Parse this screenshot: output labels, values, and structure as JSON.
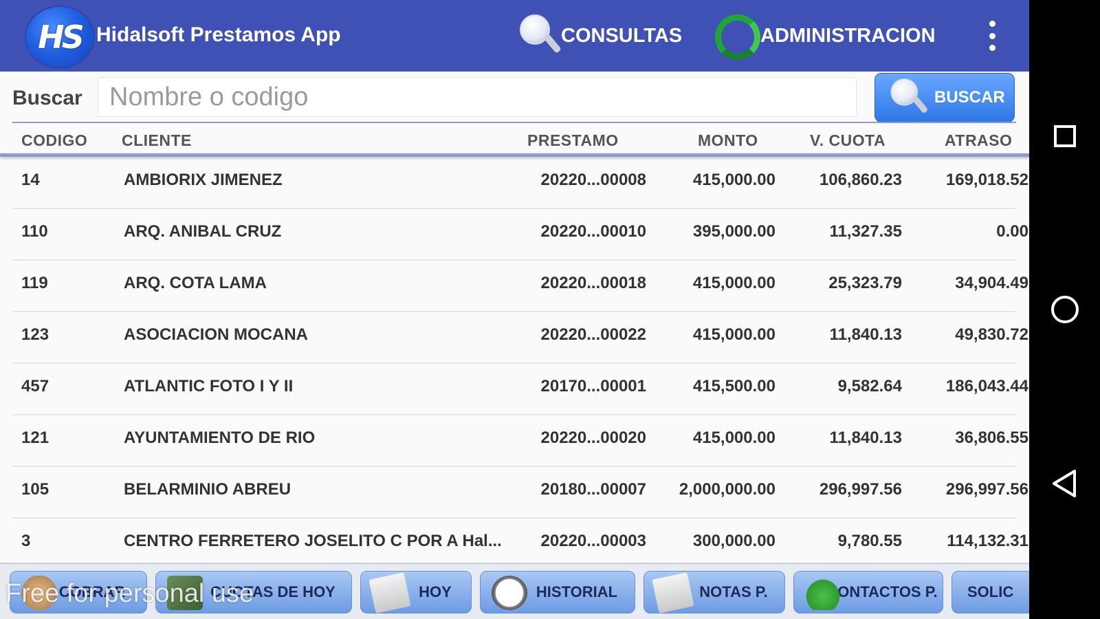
{
  "app": {
    "logo_text": "HS",
    "title": "Hidalsoft Prestamos App"
  },
  "topbar": {
    "consultas_label": "CONSULTAS",
    "administracion_label": "ADMINISTRACION"
  },
  "search": {
    "label": "Buscar",
    "placeholder": "Nombre o codigo",
    "button_label": "BUSCAR"
  },
  "table": {
    "headers": {
      "code": "CODIGO",
      "client": "CLIENTE",
      "loan": "PRESTAMO",
      "amount": "MONTO",
      "quota": "V. CUOTA",
      "late": "ATRASO"
    },
    "rows": [
      {
        "code": "14",
        "client": "AMBIORIX JIMENEZ",
        "loan": "20220...00008",
        "amount": "415,000.00",
        "quota": "106,860.23",
        "late": "169,018.52"
      },
      {
        "code": "110",
        "client": "ARQ. ANIBAL CRUZ",
        "loan": "20220...00010",
        "amount": "395,000.00",
        "quota": "11,327.35",
        "late": "0.00"
      },
      {
        "code": "119",
        "client": "ARQ. COTA LAMA",
        "loan": "20220...00018",
        "amount": "415,000.00",
        "quota": "25,323.79",
        "late": "34,904.49"
      },
      {
        "code": "123",
        "client": "ASOCIACION MOCANA",
        "loan": "20220...00022",
        "amount": "415,000.00",
        "quota": "11,840.13",
        "late": "49,830.72"
      },
      {
        "code": "457",
        "client": "ATLANTIC FOTO I Y II",
        "loan": "20170...00001",
        "amount": "415,500.00",
        "quota": "9,582.64",
        "late": "186,043.44"
      },
      {
        "code": "121",
        "client": "AYUNTAMIENTO DE RIO",
        "loan": "20220...00020",
        "amount": "415,000.00",
        "quota": "11,840.13",
        "late": "36,806.55"
      },
      {
        "code": "105",
        "client": "BELARMINIO ABREU",
        "loan": "20180...00007",
        "amount": "2,000,000.00",
        "quota": "296,997.56",
        "late": "296,997.56"
      },
      {
        "code": "3",
        "client": "CENTRO FERRETERO JOSELITO C POR A Hal...",
        "loan": "20220...00003",
        "amount": "300,000.00",
        "quota": "9,780.55",
        "late": "114,132.31"
      }
    ]
  },
  "bottom_tabs": {
    "cobrar": "COBRAR",
    "cuotas_hoy": "CUOTAS DE HOY",
    "hoy": "HOY",
    "historial": "HISTORIAL",
    "notas": "NOTAS P.",
    "contactos": "CONTACTOS P.",
    "solic": "SOLIC"
  },
  "watermark": "Free for personal use",
  "icons": {
    "search": "magnifier-icon",
    "admin": "recycle-icon",
    "menu": "kebab-menu-icon",
    "recents": "square-icon",
    "home": "circle-icon",
    "back": "triangle-back-icon"
  },
  "colors": {
    "appbar": "#3f51b5",
    "accent": "#2f77e6",
    "navbar": "#000000"
  }
}
